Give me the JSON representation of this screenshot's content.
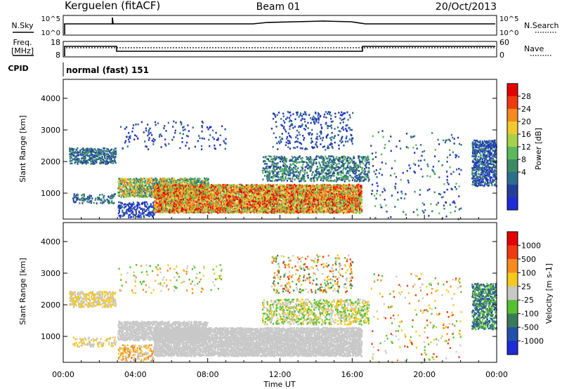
{
  "header": {
    "title_left": "Kerguelen (fitACF)",
    "title_center": "Beam 01",
    "title_right": "20/Oct/2013"
  },
  "sky_panel": {
    "label": "N.Sky",
    "left_ticks": [
      "10^5",
      "10^0"
    ],
    "right_ticks": [
      "10^5",
      "10^0"
    ],
    "right_label": "N.Search"
  },
  "freq_panel": {
    "label_line1": "Freq.",
    "label_line2": "[MHz]",
    "left_ticks": [
      "18",
      "8"
    ],
    "right_ticks": [
      "60",
      "0"
    ],
    "right_label": "Nave"
  },
  "cpid": {
    "label": "CPID",
    "text": "normal (fast) 151"
  },
  "chart_data": [
    {
      "type": "heatmap",
      "name": "power",
      "ylabel": "Slant Range [km]",
      "ylim": [
        180,
        4600
      ],
      "yticks": [
        "4000",
        "3000",
        "2000",
        "1000"
      ],
      "ytick_values": [
        4000,
        3000,
        2000,
        1000
      ],
      "colorbar_label": "Power [dB]",
      "colorbar_ticks": [
        "28",
        "24",
        "20",
        "16",
        "12",
        "8",
        "4"
      ],
      "colors": [
        "#1f2bd6",
        "#243e9c",
        "#2c6e8c",
        "#3c8a64",
        "#5cb85c",
        "#a6d24a",
        "#f0c830",
        "#f58a1e",
        "#ee3a10",
        "#e50000"
      ]
    },
    {
      "type": "heatmap",
      "name": "velocity",
      "ylabel": "Slant Range [km]",
      "ylim": [
        180,
        4600
      ],
      "yticks": [
        "4000",
        "3000",
        "2000",
        "1000"
      ],
      "ytick_values": [
        4000,
        3000,
        2000,
        1000
      ],
      "xlabel": "Time UT",
      "xticks": [
        "00:00",
        "04:00",
        "08:00",
        "12:00",
        "16:00",
        "20:00",
        "00:00"
      ],
      "colorbar_label": "Velocity [m s-1]",
      "colorbar_ticks": [
        "1000",
        "500",
        "100",
        "25",
        "-25",
        "-100",
        "-500",
        "-1000"
      ],
      "colors": [
        "#1f2bd6",
        "#2350a8",
        "#3a7a5a",
        "#55c030",
        "#c8c8c8",
        "#f5c820",
        "#f58a1e",
        "#ee3a10",
        "#e50000"
      ]
    }
  ]
}
